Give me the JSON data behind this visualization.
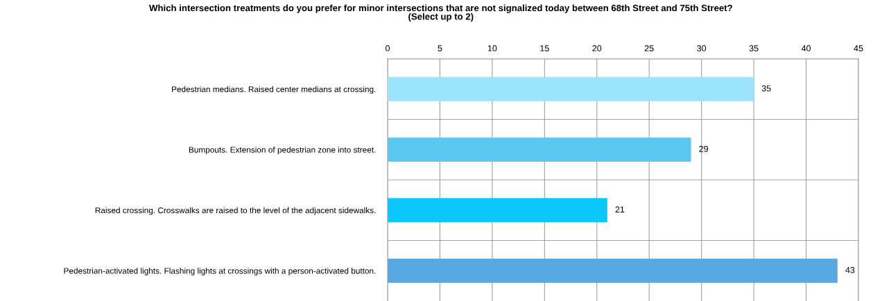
{
  "chart_data": {
    "type": "bar",
    "orientation": "horizontal",
    "title": "Which intersection treatments do you prefer for minor intersections that are not signalized today between 68th Street and 75th Street?\n(Select up to 2)",
    "categories": [
      "Pedestrian medians. Raised center medians at crossing.",
      "Bumpouts. Extension of pedestrian zone into street.",
      "Raised crossing. Crosswalks are raised to the level of the adjacent sidewalks.",
      "Pedestrian-activated lights. Flashing lights at crossings with a person-activated button."
    ],
    "values": [
      35,
      29,
      21,
      43
    ],
    "colors": [
      "#9ae4fb",
      "#5bc9ef",
      "#0bc8fc",
      "#58a8e3"
    ],
    "xlim": [
      0,
      45
    ],
    "xticks": [
      0,
      5,
      10,
      15,
      20,
      25,
      30,
      35,
      40,
      45
    ],
    "grid": true,
    "data_labels": true
  }
}
